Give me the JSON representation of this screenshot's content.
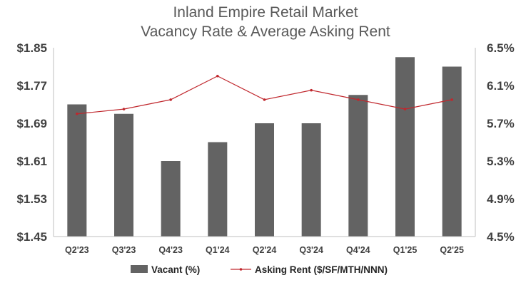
{
  "chart_data": {
    "type": "bar",
    "title": "Inland Empire Retail Market",
    "subtitle": "Vacancy Rate & Average Asking Rent",
    "categories": [
      "Q2'23",
      "Q3'23",
      "Q4'23",
      "Q1'24",
      "Q2'24",
      "Q3'24",
      "Q4'24",
      "Q1'25",
      "Q2'25"
    ],
    "left_axis": {
      "ylim": [
        1.45,
        1.85
      ],
      "tick_labels": [
        "$1.45",
        "$1.53",
        "$1.61",
        "$1.69",
        "$1.77",
        "$1.85"
      ]
    },
    "right_axis": {
      "ylim": [
        4.5,
        6.5
      ],
      "tick_labels": [
        "4.5%",
        "4.9%",
        "5.3%",
        "5.7%",
        "6.1%",
        "6.5%"
      ]
    },
    "series": [
      {
        "name": "Vacant (%)",
        "type": "bar",
        "axis": "right",
        "color": "#636363",
        "values": [
          5.9,
          5.8,
          5.3,
          5.5,
          5.7,
          5.7,
          6.0,
          6.4,
          6.3
        ]
      },
      {
        "name": "Asking Rent ($/SF/MTH/NNN)",
        "type": "line",
        "axis": "left",
        "color": "#c0272d",
        "values": [
          1.71,
          1.72,
          1.74,
          1.79,
          1.74,
          1.76,
          1.74,
          1.72,
          1.74
        ]
      }
    ],
    "grid": false,
    "legend_position": "bottom"
  }
}
